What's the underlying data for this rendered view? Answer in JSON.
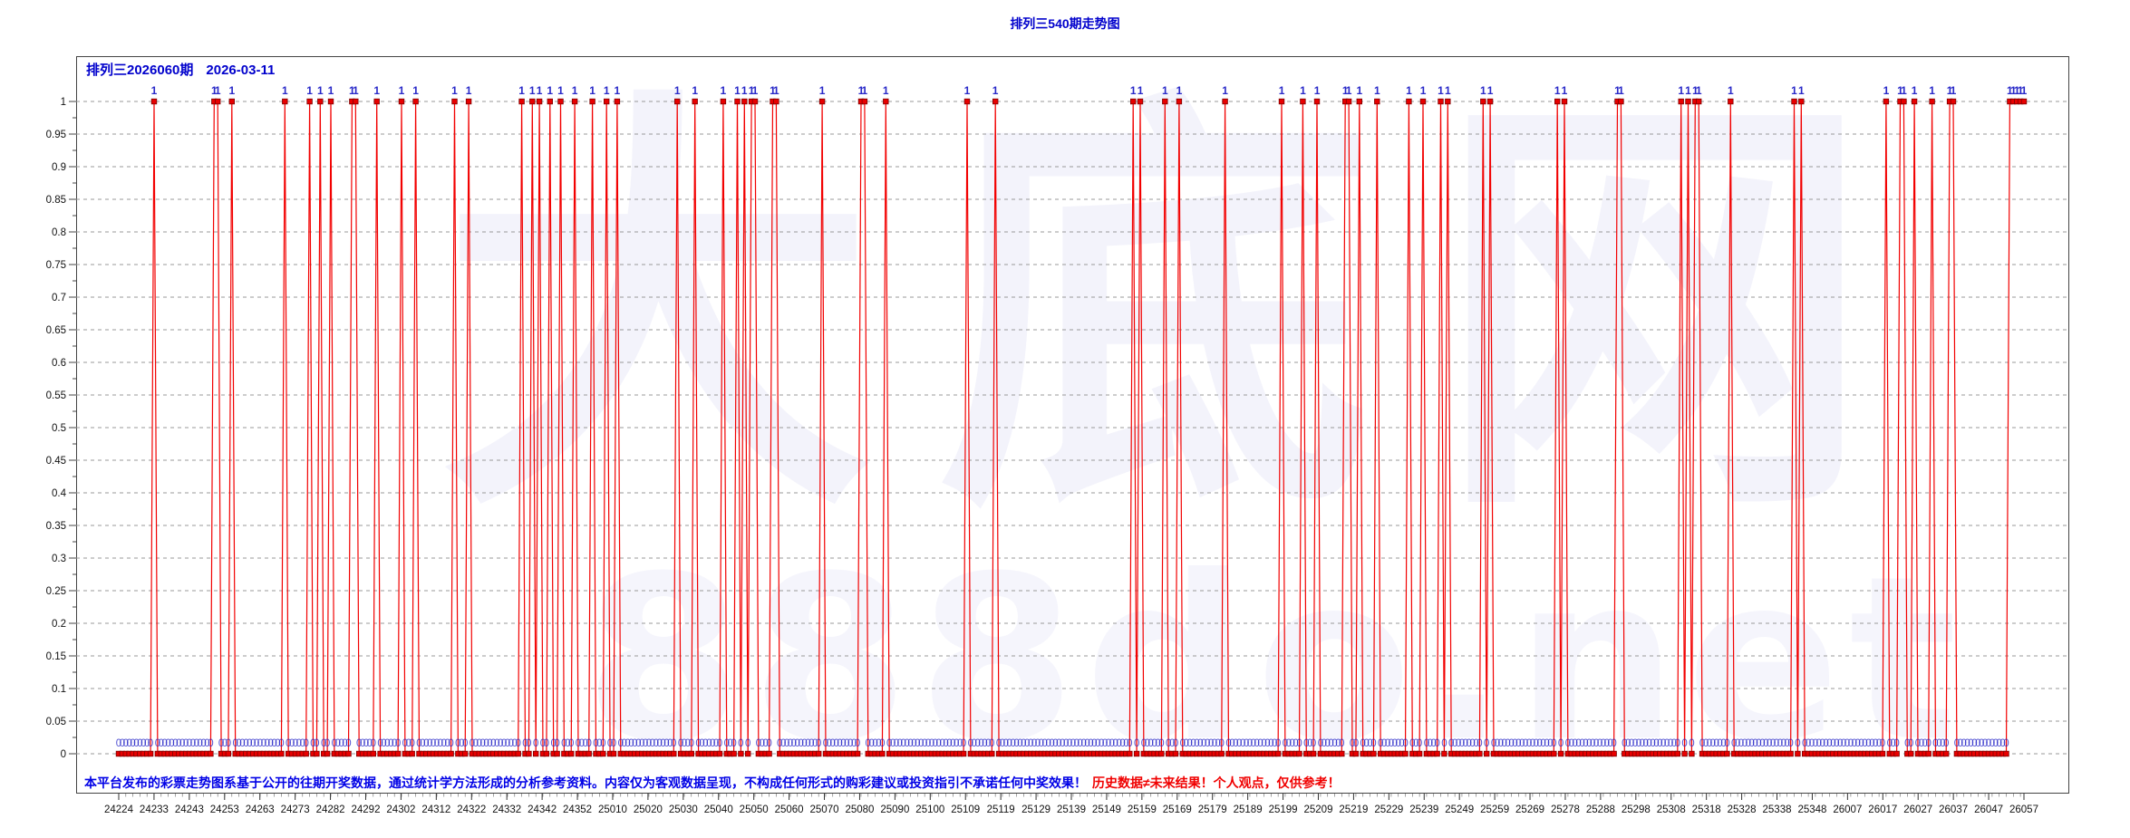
{
  "title": "排列三540期走势图",
  "header": {
    "issue": "排列三2026060期",
    "date": "2026-03-11"
  },
  "watermarks": {
    "brand": "大底网",
    "domain": "888do.net"
  },
  "disclaimer": {
    "main": "本平台发布的彩票走势图系基于公开的往期开奖数据，通过统计学方法形成的分析参考资料。内容仅为客观数据呈现，不构成任何形式的购彩建议或投资指引不承诺任何中奖效果！",
    "warning": "历史数据≠未来结果！个人观点，仅供参考！"
  },
  "chart_data": {
    "type": "line",
    "title": "排列三540期走势图",
    "description": "540 lottery periods; each period has a binary value: 1 = hit (red spike with blue '1' label), 0 = miss (baseline point with blue '0' label)",
    "n_points": 540,
    "ylim": [
      0,
      1
    ],
    "grid": "horizontal dashed gray lines every 0.05, no vertical grid",
    "legend": "none",
    "y_tick_labels": [
      "1",
      "0.95",
      "0.9",
      "0.85",
      "0.8",
      "0.75",
      "0.7",
      "0.65",
      "0.6",
      "0.55",
      "0.5",
      "0.45",
      "0.4",
      "0.35",
      "0.3",
      "0.25",
      "0.2",
      "0.15",
      "0.1",
      "0.05",
      "0"
    ],
    "x_tick_labels": [
      "24224",
      "24233",
      "24243",
      "24253",
      "24263",
      "24273",
      "24282",
      "24292",
      "24302",
      "24312",
      "24322",
      "24332",
      "24342",
      "24352",
      "25010",
      "25020",
      "25030",
      "25040",
      "25050",
      "25060",
      "25070",
      "25080",
      "25090",
      "25100",
      "25109",
      "25119",
      "25129",
      "25139",
      "25149",
      "25159",
      "25169",
      "25179",
      "25189",
      "25199",
      "25209",
      "25219",
      "25229",
      "25239",
      "25249",
      "25259",
      "25269",
      "25278",
      "25288",
      "25298",
      "25308",
      "25318",
      "25328",
      "25338",
      "25348",
      "26007",
      "26017",
      "26027",
      "26037",
      "26047",
      "26057"
    ],
    "spike_indices": [
      10,
      27,
      28,
      32,
      47,
      54,
      57,
      60,
      66,
      67,
      73,
      80,
      84,
      95,
      99,
      114,
      117,
      119,
      122,
      125,
      129,
      134,
      138,
      141,
      158,
      163,
      171,
      175,
      177,
      179,
      180,
      185,
      186,
      199,
      210,
      211,
      217,
      240,
      248,
      287,
      289,
      296,
      300,
      313,
      329,
      335,
      339,
      347,
      348,
      351,
      356,
      365,
      369,
      374,
      376,
      386,
      388,
      407,
      409,
      424,
      425,
      442,
      444,
      446,
      447,
      456,
      474,
      476,
      500,
      504,
      505,
      508,
      513,
      518,
      519,
      535,
      536,
      537,
      538,
      539
    ],
    "point_label_one": "1",
    "point_label_zero": "0",
    "colors": {
      "line": "#f20000",
      "marker_fill": "#e80000",
      "marker_stroke": "#7d0000",
      "point_label": "#2828c8",
      "grid": "#999999",
      "axis": "#444444",
      "axis_text": "#111111",
      "title_text": "#0000cc",
      "disclaimer_blue": "#0000e6",
      "disclaimer_red": "#f00000"
    }
  }
}
